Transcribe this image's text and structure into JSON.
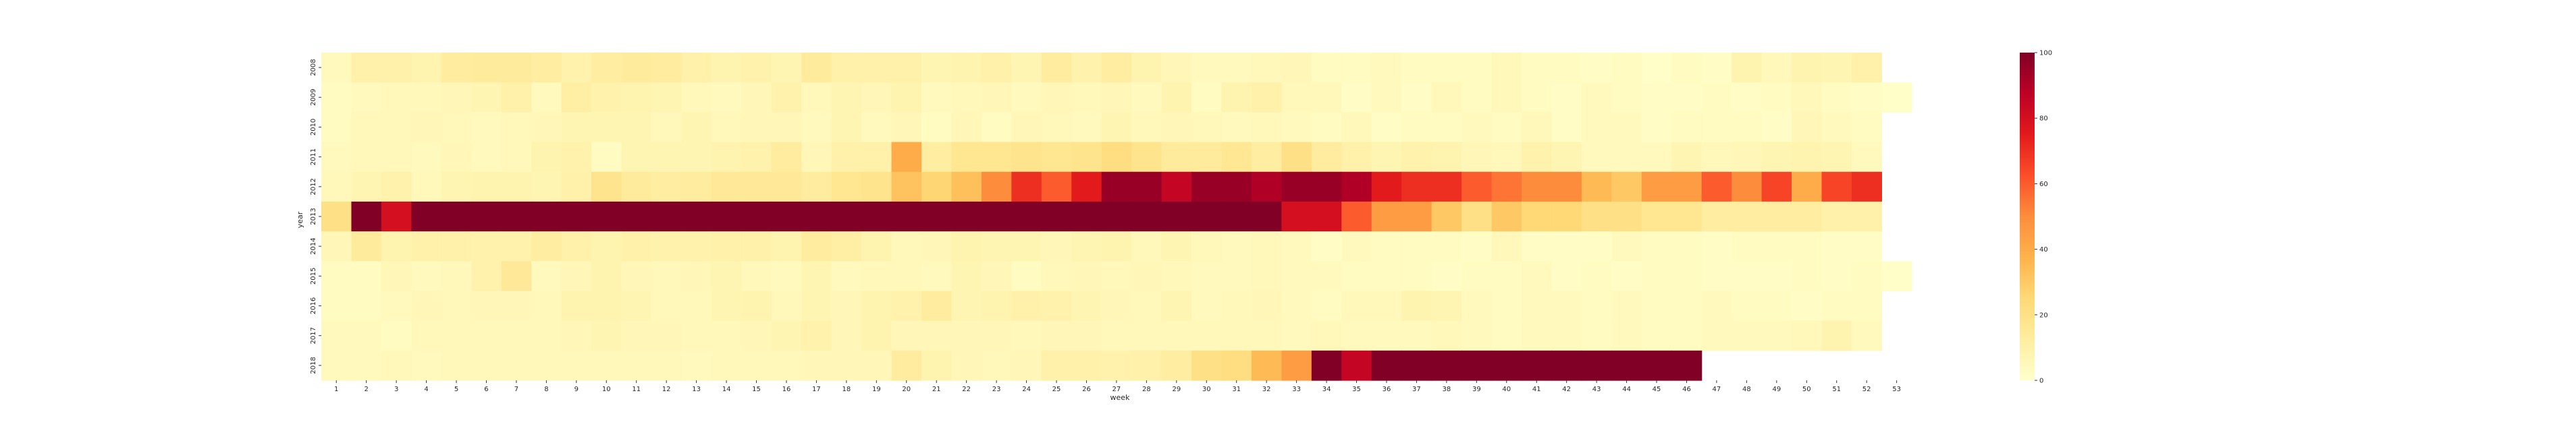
{
  "chart_data": {
    "type": "heatmap",
    "xlabel": "week",
    "ylabel": "year",
    "x": [
      1,
      2,
      3,
      4,
      5,
      6,
      7,
      8,
      9,
      10,
      11,
      12,
      13,
      14,
      15,
      16,
      17,
      18,
      19,
      20,
      21,
      22,
      23,
      24,
      25,
      26,
      27,
      28,
      29,
      30,
      31,
      32,
      33,
      34,
      35,
      36,
      37,
      38,
      39,
      40,
      41,
      42,
      43,
      44,
      45,
      46,
      47,
      48,
      49,
      50,
      51,
      52,
      53
    ],
    "y": [
      "2008",
      "2009",
      "2010",
      "2011",
      "2012",
      "2013",
      "2014",
      "2015",
      "2016",
      "2017",
      "2018"
    ],
    "zlim": [
      0,
      100
    ],
    "colorbar_ticks": [
      0,
      20,
      40,
      60,
      80,
      100
    ],
    "colormap": [
      "#ffffcc",
      "#ffeda0",
      "#fed976",
      "#feb24c",
      "#fd8d3c",
      "#fc4e2a",
      "#e31a1c",
      "#bd0026",
      "#800026"
    ],
    "values": [
      [
        4,
        10,
        10,
        8,
        13,
        14,
        14,
        12,
        9,
        12,
        14,
        13,
        10,
        8,
        9,
        7,
        14,
        10,
        10,
        10,
        7,
        8,
        10,
        7,
        13,
        9,
        12,
        8,
        6,
        4,
        4,
        5,
        6,
        3,
        3,
        4,
        3,
        3,
        3,
        5,
        3,
        3,
        2,
        3,
        1,
        3,
        2,
        8,
        5,
        8,
        7,
        10,
        null
      ],
      [
        3,
        4,
        5,
        5,
        6,
        7,
        10,
        4,
        11,
        9,
        8,
        7,
        5,
        4,
        6,
        9,
        5,
        7,
        6,
        8,
        4,
        5,
        6,
        4,
        6,
        5,
        6,
        4,
        8,
        3,
        8,
        10,
        5,
        5,
        2,
        4,
        2,
        5,
        3,
        5,
        3,
        2,
        4,
        3,
        2,
        2,
        3,
        2,
        3,
        5,
        3,
        2,
        1
      ],
      [
        3,
        5,
        5,
        6,
        5,
        4,
        5,
        6,
        7,
        7,
        7,
        5,
        7,
        5,
        6,
        6,
        4,
        7,
        4,
        6,
        3,
        6,
        3,
        6,
        5,
        4,
        7,
        5,
        6,
        5,
        4,
        5,
        4,
        3,
        5,
        2,
        3,
        3,
        4,
        3,
        5,
        2,
        4,
        4,
        2,
        3,
        3,
        3,
        2,
        6,
        4,
        3,
        null
      ],
      [
        4,
        5,
        5,
        4,
        6,
        4,
        5,
        8,
        9,
        3,
        7,
        7,
        7,
        8,
        9,
        13,
        6,
        10,
        10,
        40,
        12,
        17,
        17,
        18,
        17,
        18,
        22,
        18,
        14,
        14,
        16,
        12,
        20,
        13,
        10,
        7,
        9,
        8,
        6,
        5,
        9,
        7,
        4,
        4,
        4,
        7,
        5,
        6,
        7,
        8,
        7,
        4,
        null
      ],
      [
        5,
        7,
        9,
        5,
        7,
        8,
        8,
        7,
        10,
        18,
        14,
        12,
        13,
        15,
        15,
        15,
        13,
        17,
        18,
        32,
        26,
        33,
        50,
        70,
        60,
        75,
        95,
        95,
        85,
        95,
        95,
        90,
        95,
        95,
        90,
        75,
        70,
        70,
        60,
        55,
        50,
        50,
        35,
        30,
        45,
        45,
        60,
        50,
        65,
        40,
        65,
        70,
        null
      ],
      [
        20,
        100,
        80,
        100,
        100,
        100,
        100,
        100,
        100,
        100,
        100,
        100,
        100,
        100,
        100,
        100,
        100,
        100,
        100,
        100,
        100,
        100,
        100,
        100,
        100,
        100,
        100,
        100,
        100,
        100,
        100,
        100,
        80,
        80,
        60,
        45,
        45,
        30,
        20,
        30,
        25,
        25,
        20,
        20,
        17,
        17,
        12,
        12,
        12,
        12,
        10,
        10,
        null
      ],
      [
        6,
        14,
        8,
        10,
        10,
        9,
        9,
        12,
        10,
        8,
        10,
        9,
        9,
        10,
        10,
        8,
        13,
        11,
        8,
        5,
        6,
        8,
        7,
        7,
        6,
        7,
        8,
        5,
        7,
        5,
        4,
        5,
        4,
        2,
        4,
        3,
        3,
        3,
        2,
        5,
        2,
        2,
        2,
        4,
        3,
        3,
        2,
        3,
        3,
        3,
        2,
        2,
        null
      ],
      [
        3,
        3,
        6,
        4,
        5,
        9,
        15,
        4,
        6,
        8,
        6,
        5,
        6,
        7,
        5,
        4,
        7,
        4,
        5,
        5,
        4,
        7,
        6,
        3,
        5,
        6,
        5,
        6,
        5,
        4,
        4,
        5,
        4,
        4,
        3,
        3,
        3,
        2,
        3,
        3,
        4,
        2,
        3,
        2,
        3,
        3,
        2,
        2,
        2,
        3,
        2,
        3,
        1
      ],
      [
        3,
        3,
        4,
        6,
        5,
        6,
        6,
        5,
        8,
        8,
        7,
        5,
        5,
        7,
        8,
        5,
        7,
        6,
        8,
        9,
        13,
        7,
        8,
        10,
        9,
        7,
        6,
        5,
        7,
        4,
        5,
        6,
        4,
        3,
        5,
        5,
        8,
        7,
        4,
        3,
        4,
        4,
        3,
        4,
        3,
        3,
        4,
        3,
        3,
        2,
        3,
        3,
        null
      ],
      [
        4,
        4,
        3,
        5,
        5,
        5,
        5,
        5,
        6,
        7,
        6,
        6,
        5,
        5,
        6,
        7,
        9,
        6,
        8,
        6,
        6,
        6,
        6,
        5,
        6,
        6,
        5,
        5,
        5,
        5,
        5,
        5,
        4,
        5,
        4,
        4,
        4,
        5,
        4,
        3,
        4,
        4,
        3,
        4,
        3,
        3,
        4,
        4,
        4,
        5,
        8,
        4,
        null
      ],
      [
        4,
        4,
        5,
        4,
        5,
        5,
        5,
        5,
        5,
        5,
        5,
        5,
        4,
        5,
        5,
        5,
        6,
        6,
        6,
        13,
        8,
        6,
        5,
        6,
        10,
        10,
        9,
        10,
        12,
        20,
        22,
        35,
        45,
        100,
        85,
        100,
        100,
        100,
        100,
        100,
        100,
        100,
        100,
        100,
        100,
        100,
        null,
        null,
        null,
        null,
        null,
        null,
        null
      ]
    ]
  }
}
